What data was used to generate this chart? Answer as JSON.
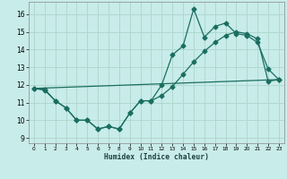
{
  "xlabel": "Humidex (Indice chaleur)",
  "bg_color": "#c8ecea",
  "grid_color": "#b0d8d0",
  "line_color": "#1a6e60",
  "xlim": [
    -0.5,
    23.5
  ],
  "ylim": [
    8.7,
    16.7
  ],
  "yticks": [
    9,
    10,
    11,
    12,
    13,
    14,
    15,
    16
  ],
  "xticks": [
    0,
    1,
    2,
    3,
    4,
    5,
    6,
    7,
    8,
    9,
    10,
    11,
    12,
    13,
    14,
    15,
    16,
    17,
    18,
    19,
    20,
    21,
    22,
    23
  ],
  "series1_x": [
    0,
    1,
    2,
    3,
    4,
    5,
    6,
    7,
    8,
    9,
    10,
    11,
    12,
    13,
    14,
    15,
    16,
    17,
    18,
    19,
    20,
    21,
    22,
    23
  ],
  "series1_y": [
    11.8,
    11.7,
    11.1,
    10.7,
    10.0,
    10.0,
    9.5,
    9.65,
    9.5,
    10.4,
    11.1,
    11.1,
    12.0,
    13.7,
    14.2,
    16.3,
    14.7,
    15.3,
    15.5,
    14.9,
    14.8,
    14.4,
    12.9,
    12.3
  ],
  "series2_x": [
    0,
    1,
    2,
    3,
    4,
    5,
    6,
    7,
    8,
    9,
    10,
    11,
    12,
    13,
    14,
    15,
    16,
    17,
    18,
    19,
    20,
    21,
    22,
    23
  ],
  "series2_y": [
    11.8,
    11.75,
    11.1,
    10.7,
    10.0,
    10.0,
    9.5,
    9.65,
    9.5,
    10.4,
    11.1,
    11.1,
    11.4,
    11.9,
    12.6,
    13.3,
    13.9,
    14.4,
    14.8,
    15.0,
    14.9,
    14.6,
    12.2,
    12.3
  ],
  "series3_x": [
    0,
    23
  ],
  "series3_y": [
    11.8,
    12.3
  ]
}
